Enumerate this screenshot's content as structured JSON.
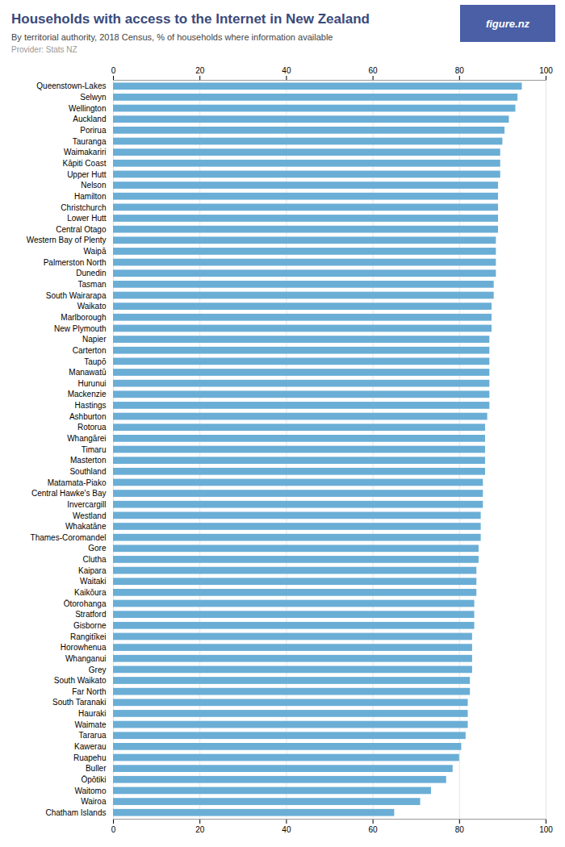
{
  "chart_data": {
    "type": "bar",
    "title": "Households with access to the Internet in New Zealand",
    "subtitle": "By territorial authority, 2018 Census, % of households where information available",
    "caption": "Provider: Stats NZ",
    "annotations": [
      "figure.nz"
    ],
    "orientation": "horizontal",
    "color": "#6aaed6",
    "grid": true,
    "categories": [
      "Queenstown-Lakes",
      "Selwyn",
      "Wellington",
      "Auckland",
      "Porirua",
      "Tauranga",
      "Waimakariri",
      "Kāpiti Coast",
      "Upper Hutt",
      "Nelson",
      "Hamilton",
      "Christchurch",
      "Lower Hutt",
      "Central Otago",
      "Western Bay of Plenty",
      "Waipā",
      "Palmerston North",
      "Dunedin",
      "Tasman",
      "South Wairarapa",
      "Waikato",
      "Marlborough",
      "New Plymouth",
      "Napier",
      "Carterton",
      "Taupō",
      "Manawatū",
      "Hurunui",
      "Mackenzie",
      "Hastings",
      "Ashburton",
      "Rotorua",
      "Whangārei",
      "Timaru",
      "Masterton",
      "Southland",
      "Matamata-Piako",
      "Central Hawke's Bay",
      "Invercargill",
      "Westland",
      "Whakatāne",
      "Thames-Coromandel",
      "Gore",
      "Clutha",
      "Kaipara",
      "Waitaki",
      "Kaikōura",
      "Ōtorohanga",
      "Stratford",
      "Gisborne",
      "Rangitīkei",
      "Horowhenua",
      "Whanganui",
      "Grey",
      "South Waikato",
      "Far North",
      "South Taranaki",
      "Hauraki",
      "Waimate",
      "Tararua",
      "Kawerau",
      "Ruapehu",
      "Buller",
      "Ōpōtiki",
      "Waitomo",
      "Wairoa",
      "Chatham Islands"
    ],
    "values": [
      94.5,
      93.5,
      93.0,
      91.5,
      90.5,
      90.0,
      89.5,
      89.5,
      89.5,
      89.0,
      89.0,
      89.0,
      89.0,
      89.0,
      88.5,
      88.5,
      88.5,
      88.5,
      88.0,
      88.0,
      87.5,
      87.5,
      87.5,
      87.0,
      87.0,
      87.0,
      87.0,
      87.0,
      87.0,
      87.0,
      86.5,
      86.0,
      86.0,
      86.0,
      86.0,
      86.0,
      85.5,
      85.5,
      85.5,
      85.0,
      85.0,
      85.0,
      84.5,
      84.5,
      84.0,
      84.0,
      84.0,
      83.5,
      83.5,
      83.5,
      83.0,
      83.0,
      83.0,
      83.0,
      82.5,
      82.5,
      82.0,
      82.0,
      82.0,
      81.5,
      80.5,
      80.0,
      78.5,
      77.0,
      73.5,
      71.0,
      65.0
    ],
    "xlim": [
      0,
      100
    ],
    "xticks": [
      0,
      20,
      40,
      60,
      80,
      100
    ]
  }
}
